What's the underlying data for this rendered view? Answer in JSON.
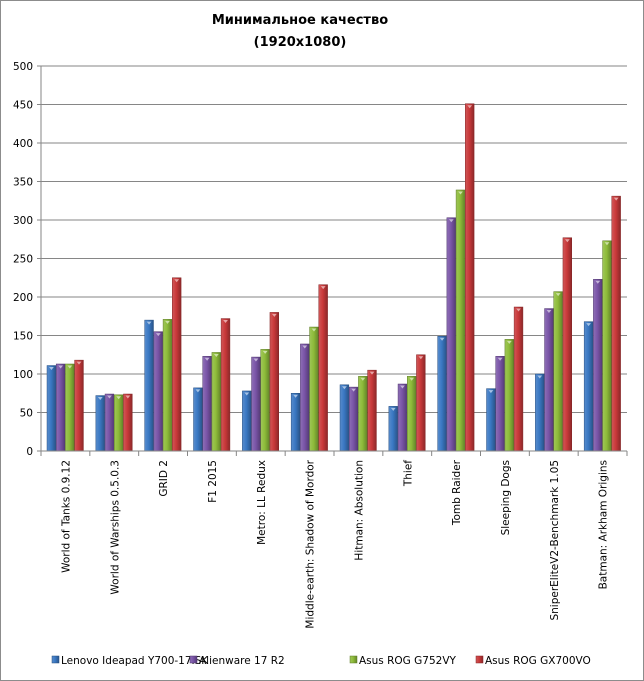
{
  "chart_data": {
    "type": "bar",
    "title": "Минимальное качество",
    "subtitle": "(1920x1080)",
    "xlabel": "",
    "ylabel": "",
    "ylim": [
      0,
      500
    ],
    "yticks": [
      0,
      50,
      100,
      150,
      200,
      250,
      300,
      350,
      400,
      450,
      500
    ],
    "grid": true,
    "legend_position": "bottom",
    "categories": [
      "World of Tanks 0.9.12",
      "World of Warships 0.5.0.3",
      "GRID 2",
      "F1 2015",
      "Metro: LL Redux",
      "Middle-earth: Shadow of Mordor",
      "Hitman: Absolution",
      "Thief",
      "Tomb Raider",
      "Sleeping Dogs",
      "SniperEliteV2-Benchmark 1.05",
      "Batman: Arkham Origins"
    ],
    "series": [
      {
        "name": "Lenovo Ideapad Y700-17ISK",
        "color": "#3a78c3",
        "values": [
          111,
          72,
          170,
          82,
          78,
          75,
          86,
          58,
          149,
          81,
          100,
          168
        ]
      },
      {
        "name": "Alienware 17 R2",
        "color": "#7a55a8",
        "values": [
          113,
          74,
          155,
          123,
          122,
          139,
          83,
          87,
          303,
          123,
          185,
          223
        ]
      },
      {
        "name": "Asus ROG G752VY",
        "color": "#8ebc3a",
        "values": [
          113,
          73,
          171,
          128,
          132,
          161,
          97,
          97,
          339,
          145,
          207,
          273
        ]
      },
      {
        "name": "Asus ROG GX700VO",
        "color": "#c9393a",
        "values": [
          118,
          74,
          225,
          172,
          180,
          216,
          105,
          125,
          451,
          187,
          277,
          331
        ]
      }
    ]
  }
}
